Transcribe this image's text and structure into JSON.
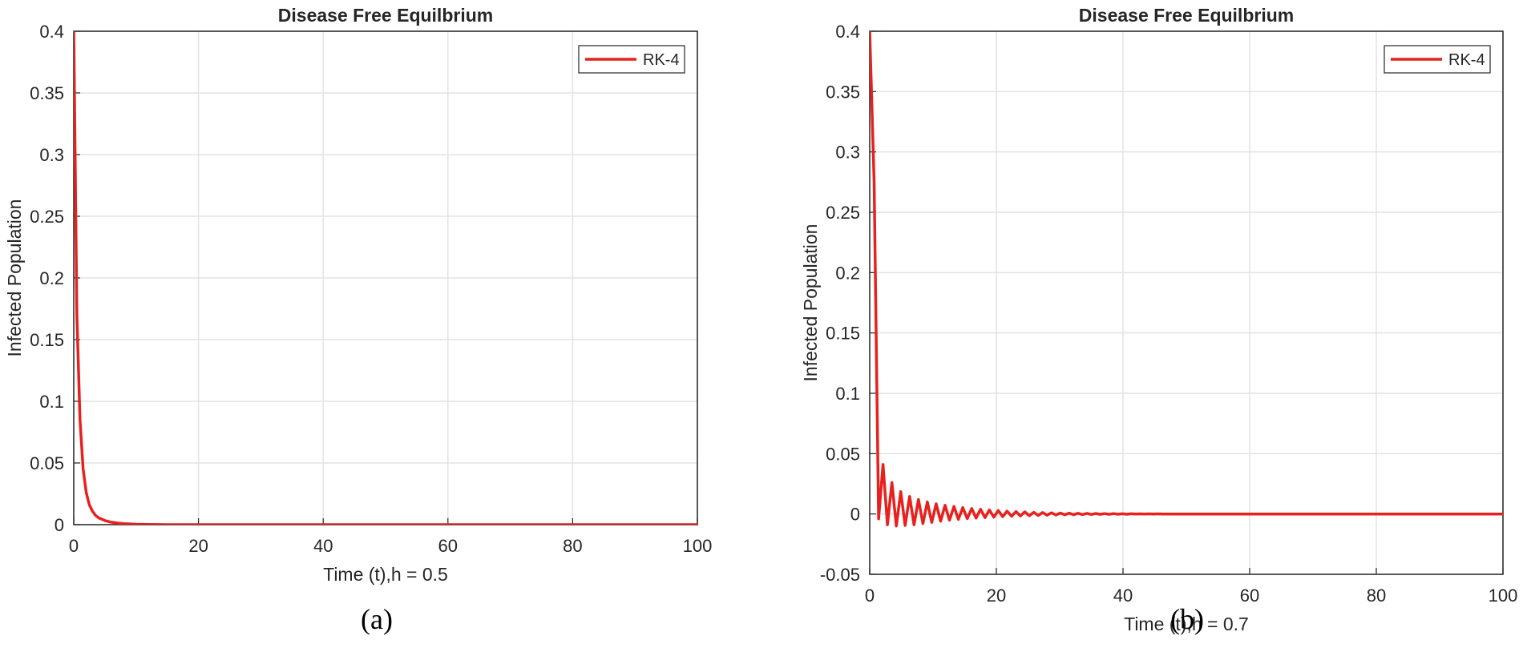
{
  "chart_data": [
    {
      "type": "line",
      "title": "Disease Free Equilbrium",
      "xlabel": "Time (t),h = 0.5",
      "ylabel": "Infected Population",
      "xlim": [
        0,
        100
      ],
      "ylim": [
        0,
        0.4
      ],
      "xticks": [
        "0",
        "20",
        "40",
        "60",
        "80",
        "100"
      ],
      "yticks": [
        "0",
        "0.05",
        "0.1",
        "0.15",
        "0.2",
        "0.25",
        "0.3",
        "0.35",
        "0.4"
      ],
      "grid": true,
      "legend_position": "top-right",
      "color": "#e8211f",
      "series": [
        {
          "name": "RK-4",
          "x": [
            0,
            0.5,
            1,
            1.5,
            2,
            2.5,
            3,
            3.5,
            4,
            5,
            6,
            7,
            8,
            10,
            12,
            15,
            20,
            30,
            40,
            50,
            60,
            70,
            80,
            90,
            100
          ],
          "y": [
            0.4,
            0.17,
            0.085,
            0.045,
            0.026,
            0.016,
            0.011,
            0.0075,
            0.0055,
            0.0033,
            0.002,
            0.0013,
            0.0008,
            0.0003,
            0.0001,
            0,
            0,
            0,
            0,
            0,
            0,
            0,
            0,
            0,
            0
          ]
        }
      ],
      "caption": "(a)"
    },
    {
      "type": "line",
      "title": "Disease Free Equilbrium",
      "xlabel": "Time (t),h = 0.7",
      "ylabel": "Infected Population",
      "xlim": [
        0,
        100
      ],
      "ylim": [
        -0.05,
        0.4
      ],
      "xticks": [
        "0",
        "20",
        "40",
        "60",
        "80",
        "100"
      ],
      "yticks": [
        "-0.05",
        "0",
        "0.05",
        "0.1",
        "0.15",
        "0.2",
        "0.25",
        "0.3",
        "0.35",
        "0.4"
      ],
      "grid": true,
      "legend_position": "top-right",
      "color": "#e8211f",
      "series": [
        {
          "name": "RK-4",
          "x": [
            0,
            0.7,
            1.4,
            2.1,
            2.8,
            3.5,
            4.2,
            4.9,
            5.6,
            6.3,
            7.0,
            7.7,
            8.4,
            9.1,
            9.8,
            10.5,
            11.2,
            11.9,
            12.6,
            13.3,
            14.0,
            14.7,
            15.4,
            16.1,
            16.8,
            17.5,
            18.2,
            18.9,
            19.6,
            20.3,
            21.0,
            21.7,
            22.4,
            23.1,
            23.8,
            24.5,
            25.2,
            25.9,
            26.6,
            27.3,
            28.0,
            28.7,
            29.4,
            30.1,
            30.8,
            31.5,
            32.2,
            32.9,
            33.6,
            34.3,
            35.0,
            35.7,
            36.4,
            37.1,
            37.8,
            38.5,
            39.2,
            39.9,
            40.6,
            41.3,
            42.0,
            42.7,
            43.4,
            44.1,
            44.8,
            45.5,
            46.2,
            46.9,
            50,
            60,
            70,
            80,
            90,
            100
          ],
          "y": [
            0.4,
            0.275,
            -0.004,
            0.041,
            -0.009,
            0.026,
            -0.01,
            0.0185,
            -0.0095,
            0.0145,
            -0.009,
            0.012,
            -0.008,
            0.01,
            -0.007,
            0.0085,
            -0.006,
            0.0072,
            -0.0052,
            0.0062,
            -0.0045,
            0.0053,
            -0.0039,
            0.0045,
            -0.0034,
            0.0039,
            -0.003,
            0.0033,
            -0.0026,
            0.0028,
            -0.0022,
            0.0024,
            -0.0019,
            0.002,
            -0.0016,
            0.0017,
            -0.0014,
            0.0014,
            -0.0012,
            0.0012,
            -0.001,
            0.001,
            -0.0008,
            0.0008,
            -0.0007,
            0.0007,
            -0.0006,
            0.0006,
            -0.0005,
            0.0005,
            -0.0004,
            0.0004,
            -0.0003,
            0.0003,
            -0.0003,
            0.0003,
            -0.0002,
            0.0002,
            -0.0002,
            0.0002,
            -0.0001,
            0.0001,
            -0.0001,
            0.0001,
            -0.0001,
            0.0001,
            0,
            0,
            0,
            0,
            0,
            0,
            0,
            0
          ]
        }
      ],
      "caption": "(b)"
    }
  ]
}
